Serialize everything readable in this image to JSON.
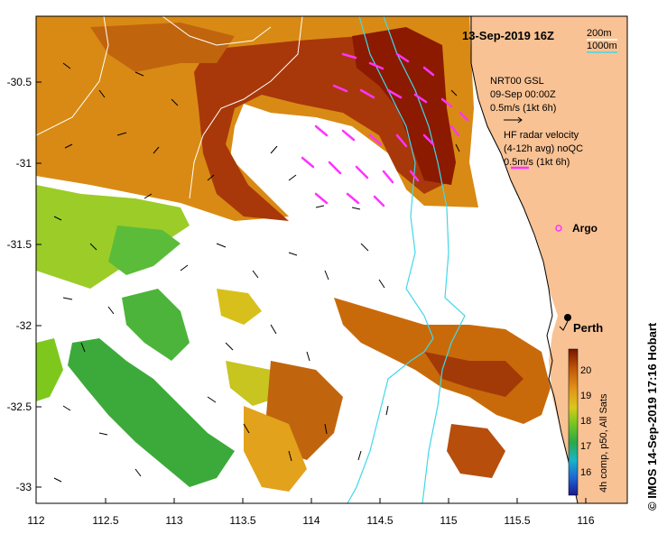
{
  "title": "13-Sep-2019 16Z",
  "depth_contours": {
    "label_200m": "200m",
    "label_1000m": "1000m",
    "color_200m": "#ffffff",
    "color_1000m": "#40d8e8"
  },
  "gsl_legend": {
    "line1": "NRT00 GSL",
    "line2": "09-Sep 00:00Z",
    "line3": "0.5m/s (1kt 6h)"
  },
  "radar_legend": {
    "line1": "HF radar velocity",
    "line2": "(4-12h avg) noQC",
    "line3": "0.5m/s (1kt 6h)",
    "arrow_color": "#ff33ff"
  },
  "argo": {
    "label": "Argo"
  },
  "city": {
    "label": "Perth"
  },
  "x_axis": {
    "ticks": [
      "112",
      "112.5",
      "113",
      "113.5",
      "114",
      "114.5",
      "115",
      "115.5",
      "116"
    ]
  },
  "y_axis": {
    "ticks": [
      "-30.5",
      "-31",
      "-31.5",
      "-32",
      "-32.5",
      "-33"
    ]
  },
  "colorbar": {
    "ticks": [
      "20",
      "19",
      "18",
      "17",
      "16"
    ],
    "label": "4h comp, p50, All Sats",
    "range": [
      15.5,
      20.5
    ]
  },
  "credit": "© IMOS 14-Sep-2019 17:16 Hobart",
  "colors": {
    "land": "#f9c294",
    "hot": "#8b1a00",
    "warm": "#c96a0a",
    "mild": "#e2a21c",
    "cool": "#4cb43a"
  }
}
